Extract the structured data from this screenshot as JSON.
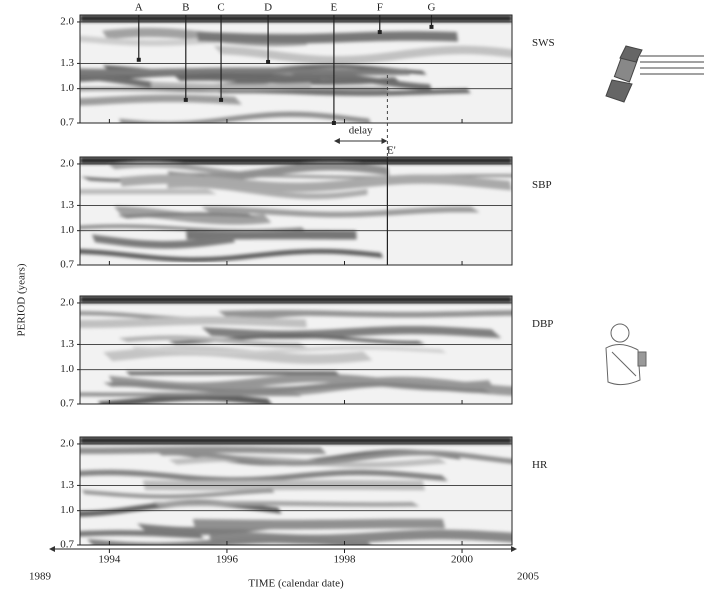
{
  "chart_data": {
    "type": "wavelet-panels",
    "y_axis_label": "PERIOD (years)",
    "x_axis_label": "TIME (calendar date)",
    "y_scale": "log",
    "ylim": [
      0.7,
      2.15
    ],
    "yticks": [
      {
        "value": 2,
        "label": "2.0"
      },
      1.3,
      {
        "value": 1,
        "label": "1.0"
      },
      0.7
    ],
    "grid": true,
    "xlim": [
      1993.5,
      2000.85
    ],
    "xticks": [
      1994,
      1996,
      1998,
      2000
    ],
    "x_axis_end_labels": [
      1989,
      2005
    ],
    "panels": [
      {
        "label": "SWS"
      },
      {
        "label": "SBP"
      },
      {
        "label": "DBP"
      },
      {
        "label": "HR"
      }
    ],
    "events": [
      {
        "label": "A",
        "year": 1994.5,
        "period": 1.35
      },
      {
        "label": "B",
        "year": 1995.3,
        "period": 0.89
      },
      {
        "label": "C",
        "year": 1995.9,
        "period": 0.89
      },
      {
        "label": "D",
        "year": 1996.7,
        "period": 1.32
      },
      {
        "label": "E",
        "year": 1997.82,
        "period": 0.7
      },
      {
        "label": "F",
        "year": 1998.6,
        "period": 1.8
      },
      {
        "label": "G",
        "year": 1999.48,
        "period": 1.9
      }
    ],
    "delay_label": "delay",
    "lagged_event": {
      "label": "E'",
      "year": 1998.73,
      "period": 0.7
    }
  }
}
